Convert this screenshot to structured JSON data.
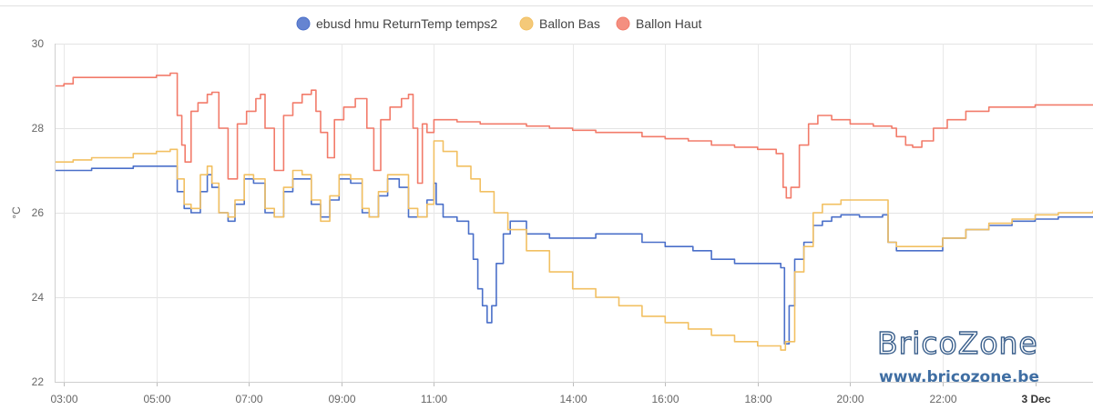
{
  "chart_data": {
    "type": "line",
    "ylabel": "°C",
    "ylim": [
      22,
      30
    ],
    "yticks": [
      22,
      24,
      26,
      28,
      30
    ],
    "grid": true,
    "legend_placement": "top-center",
    "xticks": [
      {
        "h": 3,
        "label": "03:00",
        "bold": false
      },
      {
        "h": 5,
        "label": "05:00",
        "bold": false
      },
      {
        "h": 7,
        "label": "07:00",
        "bold": false
      },
      {
        "h": 9,
        "label": "09:00",
        "bold": false
      },
      {
        "h": 11,
        "label": "11:00",
        "bold": false
      },
      {
        "h": 14,
        "label": "14:00",
        "bold": false
      },
      {
        "h": 16,
        "label": "16:00",
        "bold": false
      },
      {
        "h": 18,
        "label": "18:00",
        "bold": false
      },
      {
        "h": 20,
        "label": "20:00",
        "bold": false
      },
      {
        "h": 22,
        "label": "22:00",
        "bold": false
      },
      {
        "h": 24,
        "label": "3 Dec",
        "bold": true
      }
    ],
    "series": [
      {
        "name": "ebusd hmu ReturnTemp temps2",
        "color": "#4a6fc9",
        "points": [
          [
            2.8,
            27.0
          ],
          [
            3.2,
            27.0
          ],
          [
            3.6,
            27.05
          ],
          [
            4.0,
            27.05
          ],
          [
            4.5,
            27.1
          ],
          [
            5.3,
            27.1
          ],
          [
            5.45,
            26.5
          ],
          [
            5.6,
            26.1
          ],
          [
            5.75,
            26.0
          ],
          [
            5.95,
            26.5
          ],
          [
            6.1,
            26.9
          ],
          [
            6.2,
            26.6
          ],
          [
            6.35,
            26.0
          ],
          [
            6.55,
            25.8
          ],
          [
            6.7,
            26.2
          ],
          [
            6.9,
            26.8
          ],
          [
            7.1,
            26.7
          ],
          [
            7.35,
            26.0
          ],
          [
            7.55,
            25.9
          ],
          [
            7.75,
            26.5
          ],
          [
            7.95,
            26.8
          ],
          [
            8.15,
            26.8
          ],
          [
            8.35,
            26.2
          ],
          [
            8.55,
            25.9
          ],
          [
            8.75,
            26.3
          ],
          [
            8.95,
            26.8
          ],
          [
            9.2,
            26.7
          ],
          [
            9.45,
            26.0
          ],
          [
            9.6,
            25.9
          ],
          [
            9.8,
            26.4
          ],
          [
            10.0,
            26.8
          ],
          [
            10.25,
            26.6
          ],
          [
            10.45,
            25.9
          ],
          [
            10.65,
            25.9
          ],
          [
            10.85,
            26.3
          ],
          [
            11.0,
            26.7
          ],
          [
            11.05,
            26.2
          ],
          [
            11.2,
            25.9
          ],
          [
            11.5,
            25.8
          ],
          [
            11.75,
            25.5
          ],
          [
            11.85,
            24.9
          ],
          [
            11.95,
            24.2
          ],
          [
            12.05,
            23.8
          ],
          [
            12.15,
            23.4
          ],
          [
            12.25,
            23.8
          ],
          [
            12.35,
            24.8
          ],
          [
            12.5,
            25.5
          ],
          [
            12.65,
            25.8
          ],
          [
            12.8,
            25.8
          ],
          [
            13.0,
            25.5
          ],
          [
            13.5,
            25.4
          ],
          [
            14.0,
            25.4
          ],
          [
            14.5,
            25.5
          ],
          [
            15.0,
            25.5
          ],
          [
            15.5,
            25.3
          ],
          [
            16.0,
            25.2
          ],
          [
            16.6,
            25.1
          ],
          [
            17.0,
            24.9
          ],
          [
            17.5,
            24.8
          ],
          [
            18.2,
            24.8
          ],
          [
            18.5,
            24.7
          ],
          [
            18.58,
            22.9
          ],
          [
            18.68,
            23.8
          ],
          [
            18.8,
            24.9
          ],
          [
            19.0,
            25.3
          ],
          [
            19.2,
            25.7
          ],
          [
            19.4,
            25.8
          ],
          [
            19.6,
            25.9
          ],
          [
            19.8,
            25.95
          ],
          [
            20.2,
            25.9
          ],
          [
            20.7,
            25.95
          ],
          [
            20.82,
            25.3
          ],
          [
            21.0,
            25.1
          ],
          [
            21.5,
            25.1
          ],
          [
            22.0,
            25.4
          ],
          [
            22.5,
            25.6
          ],
          [
            23.0,
            25.7
          ],
          [
            23.5,
            25.8
          ],
          [
            24.0,
            25.85
          ],
          [
            24.5,
            25.9
          ],
          [
            25.25,
            25.9
          ]
        ]
      },
      {
        "name": "Ballon Bas",
        "color": "#f2c062",
        "points": [
          [
            2.8,
            27.2
          ],
          [
            3.2,
            27.25
          ],
          [
            3.6,
            27.3
          ],
          [
            4.0,
            27.3
          ],
          [
            4.5,
            27.4
          ],
          [
            5.0,
            27.45
          ],
          [
            5.3,
            27.5
          ],
          [
            5.45,
            26.8
          ],
          [
            5.6,
            26.2
          ],
          [
            5.75,
            26.1
          ],
          [
            5.95,
            26.9
          ],
          [
            6.1,
            27.1
          ],
          [
            6.2,
            26.7
          ],
          [
            6.35,
            26.0
          ],
          [
            6.55,
            25.9
          ],
          [
            6.7,
            26.3
          ],
          [
            6.9,
            26.9
          ],
          [
            7.1,
            26.8
          ],
          [
            7.35,
            26.1
          ],
          [
            7.55,
            25.9
          ],
          [
            7.75,
            26.6
          ],
          [
            7.95,
            27.0
          ],
          [
            8.15,
            26.9
          ],
          [
            8.35,
            26.3
          ],
          [
            8.55,
            25.8
          ],
          [
            8.75,
            26.4
          ],
          [
            8.95,
            26.9
          ],
          [
            9.2,
            26.8
          ],
          [
            9.45,
            26.1
          ],
          [
            9.6,
            25.9
          ],
          [
            9.8,
            26.5
          ],
          [
            10.0,
            26.9
          ],
          [
            10.25,
            26.9
          ],
          [
            10.45,
            26.1
          ],
          [
            10.65,
            25.9
          ],
          [
            10.85,
            26.2
          ],
          [
            11.0,
            27.7
          ],
          [
            11.2,
            27.45
          ],
          [
            11.5,
            27.1
          ],
          [
            11.8,
            26.8
          ],
          [
            12.0,
            26.5
          ],
          [
            12.3,
            26.0
          ],
          [
            12.6,
            25.6
          ],
          [
            13.0,
            25.1
          ],
          [
            13.5,
            24.6
          ],
          [
            14.0,
            24.2
          ],
          [
            14.5,
            24.0
          ],
          [
            15.0,
            23.8
          ],
          [
            15.5,
            23.55
          ],
          [
            16.0,
            23.4
          ],
          [
            16.5,
            23.25
          ],
          [
            17.0,
            23.1
          ],
          [
            17.5,
            22.95
          ],
          [
            18.0,
            22.85
          ],
          [
            18.5,
            22.75
          ],
          [
            18.6,
            22.95
          ],
          [
            18.8,
            24.6
          ],
          [
            19.0,
            25.2
          ],
          [
            19.2,
            26.0
          ],
          [
            19.4,
            26.2
          ],
          [
            19.8,
            26.3
          ],
          [
            20.2,
            26.3
          ],
          [
            20.7,
            26.3
          ],
          [
            20.82,
            25.3
          ],
          [
            21.0,
            25.2
          ],
          [
            21.5,
            25.2
          ],
          [
            22.0,
            25.4
          ],
          [
            22.5,
            25.6
          ],
          [
            23.0,
            25.75
          ],
          [
            23.5,
            25.85
          ],
          [
            24.0,
            25.95
          ],
          [
            24.5,
            26.0
          ],
          [
            25.25,
            26.05
          ]
        ]
      },
      {
        "name": "Ballon Haut",
        "color": "#f27b6a",
        "points": [
          [
            2.8,
            29.0
          ],
          [
            3.0,
            29.05
          ],
          [
            3.2,
            29.2
          ],
          [
            4.0,
            29.2
          ],
          [
            4.5,
            29.2
          ],
          [
            5.0,
            29.25
          ],
          [
            5.3,
            29.3
          ],
          [
            5.45,
            28.3
          ],
          [
            5.55,
            27.6
          ],
          [
            5.62,
            27.2
          ],
          [
            5.75,
            28.4
          ],
          [
            5.9,
            28.6
          ],
          [
            6.1,
            28.8
          ],
          [
            6.2,
            28.85
          ],
          [
            6.35,
            28.0
          ],
          [
            6.55,
            26.8
          ],
          [
            6.75,
            28.1
          ],
          [
            6.95,
            28.4
          ],
          [
            7.15,
            28.7
          ],
          [
            7.25,
            28.8
          ],
          [
            7.35,
            28.0
          ],
          [
            7.55,
            27.0
          ],
          [
            7.75,
            28.3
          ],
          [
            7.95,
            28.6
          ],
          [
            8.15,
            28.8
          ],
          [
            8.35,
            28.9
          ],
          [
            8.45,
            28.4
          ],
          [
            8.55,
            27.9
          ],
          [
            8.7,
            27.3
          ],
          [
            8.85,
            28.2
          ],
          [
            9.05,
            28.5
          ],
          [
            9.3,
            28.7
          ],
          [
            9.45,
            28.7
          ],
          [
            9.55,
            28.0
          ],
          [
            9.7,
            27.0
          ],
          [
            9.85,
            28.2
          ],
          [
            10.05,
            28.5
          ],
          [
            10.3,
            28.7
          ],
          [
            10.45,
            28.8
          ],
          [
            10.55,
            28.0
          ],
          [
            10.65,
            26.7
          ],
          [
            10.75,
            28.1
          ],
          [
            10.85,
            27.9
          ],
          [
            11.0,
            28.2
          ],
          [
            11.5,
            28.15
          ],
          [
            12.0,
            28.1
          ],
          [
            12.5,
            28.1
          ],
          [
            13.0,
            28.05
          ],
          [
            13.5,
            28.0
          ],
          [
            14.0,
            27.95
          ],
          [
            14.5,
            27.9
          ],
          [
            15.0,
            27.9
          ],
          [
            15.5,
            27.8
          ],
          [
            16.0,
            27.75
          ],
          [
            16.5,
            27.7
          ],
          [
            17.0,
            27.6
          ],
          [
            17.5,
            27.55
          ],
          [
            18.0,
            27.5
          ],
          [
            18.4,
            27.4
          ],
          [
            18.55,
            26.6
          ],
          [
            18.62,
            26.35
          ],
          [
            18.72,
            26.6
          ],
          [
            18.9,
            27.6
          ],
          [
            19.1,
            28.1
          ],
          [
            19.3,
            28.3
          ],
          [
            19.6,
            28.2
          ],
          [
            20.0,
            28.1
          ],
          [
            20.5,
            28.05
          ],
          [
            20.9,
            28.0
          ],
          [
            21.0,
            27.8
          ],
          [
            21.2,
            27.6
          ],
          [
            21.35,
            27.55
          ],
          [
            21.55,
            27.7
          ],
          [
            21.8,
            28.0
          ],
          [
            22.1,
            28.2
          ],
          [
            22.5,
            28.4
          ],
          [
            23.0,
            28.5
          ],
          [
            23.5,
            28.5
          ],
          [
            24.0,
            28.55
          ],
          [
            24.5,
            28.55
          ],
          [
            25.25,
            28.55
          ]
        ]
      }
    ]
  },
  "watermark": {
    "main": "BricoZone",
    "url": "www.bricozone.be"
  }
}
